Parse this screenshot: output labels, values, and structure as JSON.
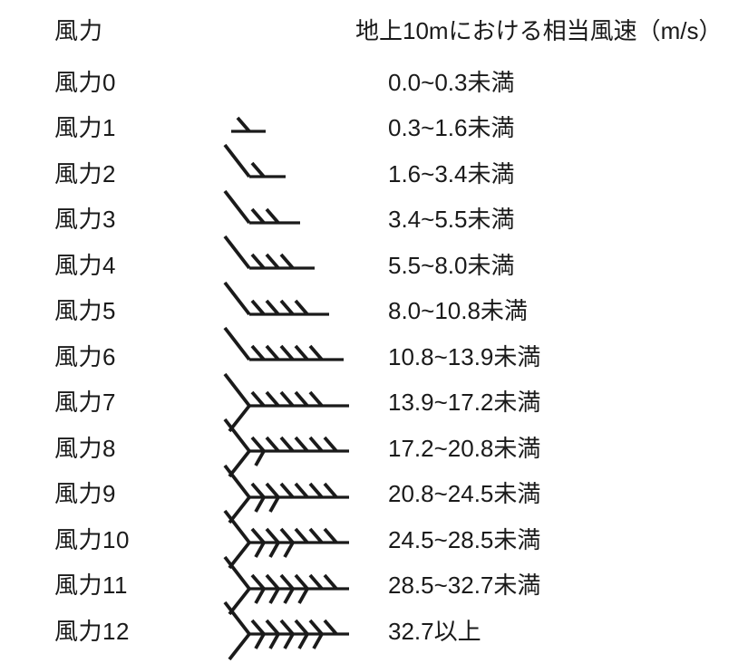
{
  "page": {
    "background": "#ffffff",
    "ink": "#1a1a1a"
  },
  "header": {
    "force_label": "風力",
    "speed_label": "地上10mにおける相当風速（m/s）"
  },
  "rows": [
    {
      "force": "風力0",
      "speed": "0.0~0.3未満",
      "barb": null
    },
    {
      "force": "風力1",
      "speed": "0.3~1.6未満",
      "barb": {
        "symbol": "wind-barb-1",
        "long_feather": false,
        "vee": false,
        "chevron_count": 0,
        "half_tick_count": 1
      }
    },
    {
      "force": "風力2",
      "speed": "1.6~3.4未満",
      "barb": {
        "symbol": "wind-barb-2",
        "long_feather": true,
        "vee": false,
        "chevron_count": 0,
        "half_tick_count": 1
      }
    },
    {
      "force": "風力3",
      "speed": "3.4~5.5未満",
      "barb": {
        "symbol": "wind-barb-3",
        "long_feather": true,
        "vee": false,
        "chevron_count": 0,
        "half_tick_count": 2
      }
    },
    {
      "force": "風力4",
      "speed": "5.5~8.0未満",
      "barb": {
        "symbol": "wind-barb-4",
        "long_feather": true,
        "vee": false,
        "chevron_count": 0,
        "half_tick_count": 3
      }
    },
    {
      "force": "風力5",
      "speed": "8.0~10.8未満",
      "barb": {
        "symbol": "wind-barb-5",
        "long_feather": true,
        "vee": false,
        "chevron_count": 0,
        "half_tick_count": 4
      }
    },
    {
      "force": "風力6",
      "speed": "10.8~13.9未満",
      "barb": {
        "symbol": "wind-barb-6",
        "long_feather": true,
        "vee": false,
        "chevron_count": 0,
        "half_tick_count": 5
      }
    },
    {
      "force": "風力7",
      "speed": "13.9~17.2未満",
      "barb": {
        "symbol": "wind-barb-7",
        "long_feather": false,
        "vee": true,
        "chevron_count": 0,
        "half_tick_count": 5
      }
    },
    {
      "force": "風力8",
      "speed": "17.2~20.8未満",
      "barb": {
        "symbol": "wind-barb-8",
        "long_feather": false,
        "vee": true,
        "chevron_count": 1,
        "half_tick_count": 5
      }
    },
    {
      "force": "風力9",
      "speed": "20.8~24.5未満",
      "barb": {
        "symbol": "wind-barb-9",
        "long_feather": false,
        "vee": true,
        "chevron_count": 2,
        "half_tick_count": 4
      }
    },
    {
      "force": "風力10",
      "speed": "24.5~28.5未満",
      "barb": {
        "symbol": "wind-barb-10",
        "long_feather": false,
        "vee": true,
        "chevron_count": 3,
        "half_tick_count": 3
      }
    },
    {
      "force": "風力11",
      "speed": "28.5~32.7未満",
      "barb": {
        "symbol": "wind-barb-11",
        "long_feather": false,
        "vee": true,
        "chevron_count": 4,
        "half_tick_count": 2
      }
    },
    {
      "force": "風力12",
      "speed": "32.7以上",
      "barb": {
        "symbol": "wind-barb-12",
        "long_feather": false,
        "vee": true,
        "chevron_count": 5,
        "half_tick_count": 1
      }
    }
  ],
  "chart_data": {
    "type": "table",
    "columns": [
      "風力",
      "地上10mにおける相当風速（m/s）"
    ],
    "rows": [
      [
        "風力0",
        "0.0~0.3未満"
      ],
      [
        "風力1",
        "0.3~1.6未満"
      ],
      [
        "風力2",
        "1.6~3.4未満"
      ],
      [
        "風力3",
        "3.4~5.5未満"
      ],
      [
        "風力4",
        "5.5~8.0未満"
      ],
      [
        "風力5",
        "8.0~10.8未満"
      ],
      [
        "風力6",
        "10.8~13.9未満"
      ],
      [
        "風力7",
        "13.9~17.2未満"
      ],
      [
        "風力8",
        "17.2~20.8未満"
      ],
      [
        "風力9",
        "20.8~24.5未満"
      ],
      [
        "風力10",
        "24.5~28.5未満"
      ],
      [
        "風力11",
        "28.5~32.7未満"
      ],
      [
        "風力12",
        "32.7以上"
      ]
    ]
  }
}
